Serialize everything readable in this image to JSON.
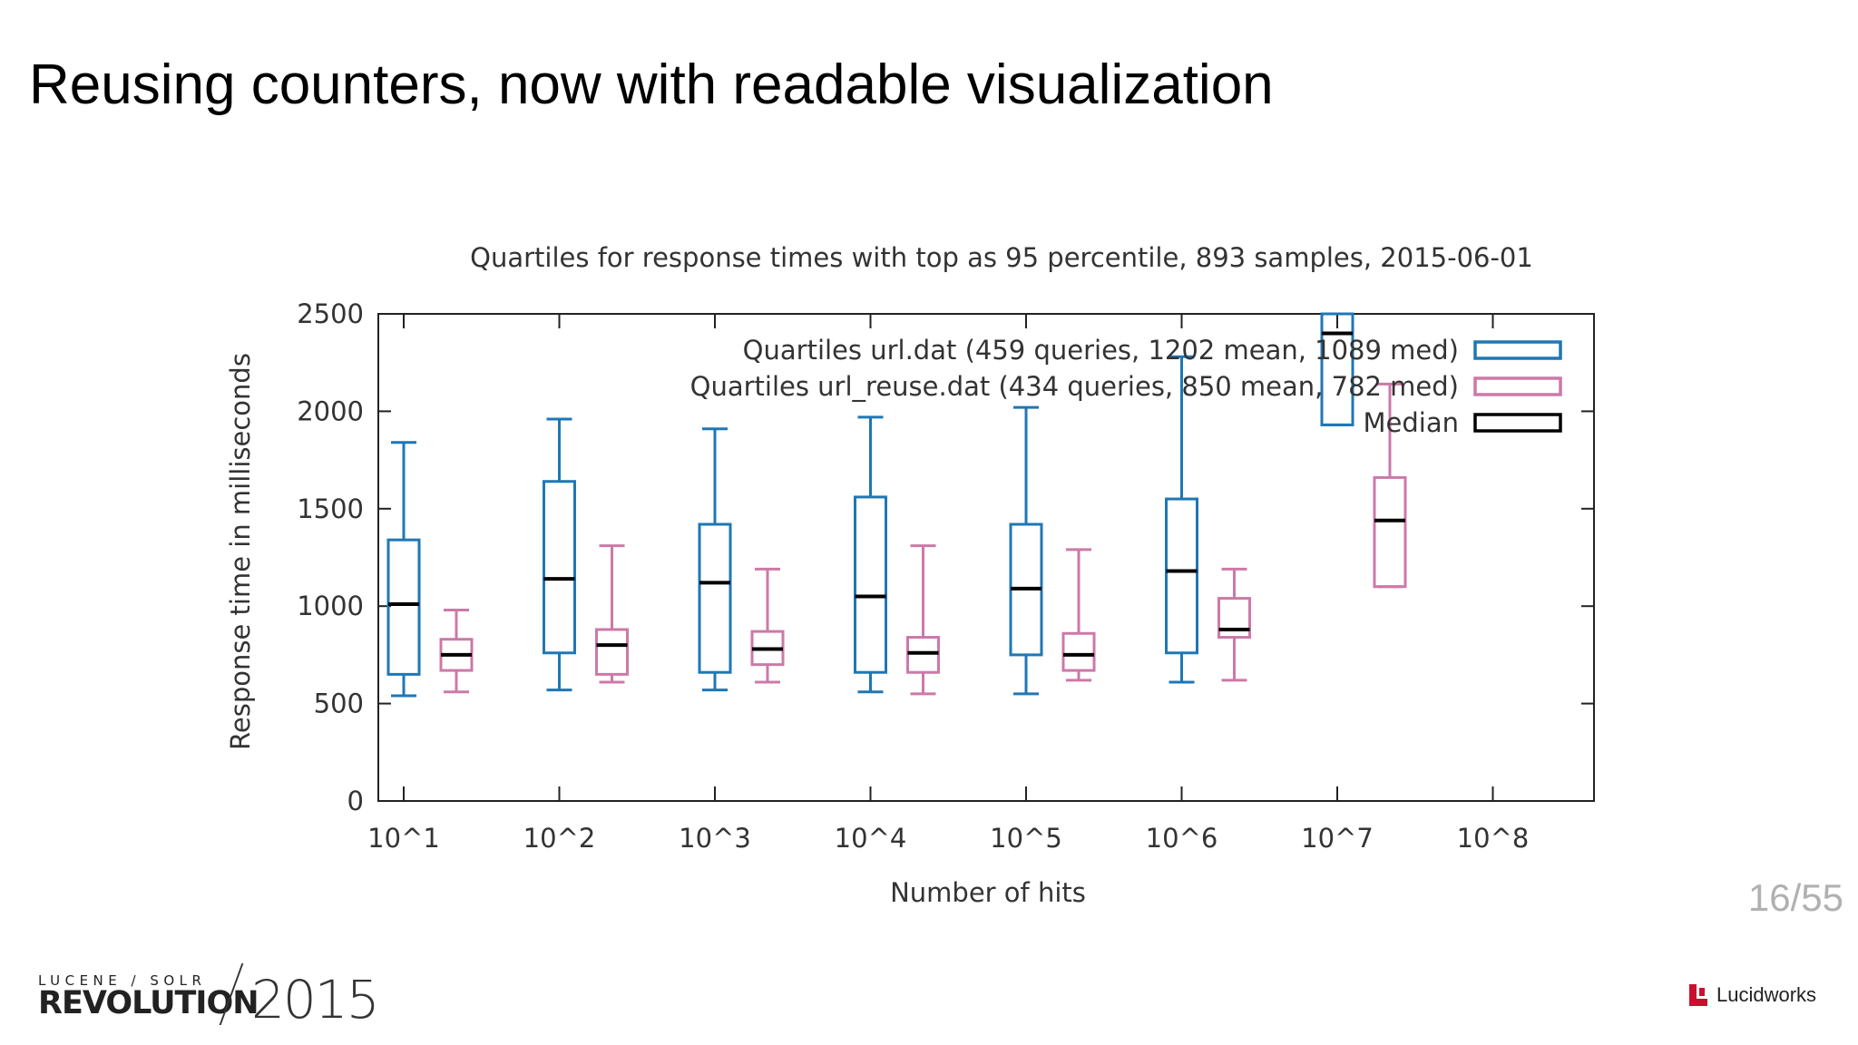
{
  "slide": {
    "title": "Reusing counters, now with readable visualization",
    "page_number": "16/55"
  },
  "footer": {
    "conference_small": "LUCENE / SOLR",
    "conference_big": "REVOLUTION",
    "conference_year": "2015",
    "vendor_name": "Lucidworks"
  },
  "colors": {
    "url": "#1f77b4",
    "url_reuse": "#cc79a7",
    "median": "#000000"
  },
  "chart_data": {
    "type": "box",
    "title": "Quartiles for response times with top as 95 percentile, 893 samples, 2015-06-01",
    "xlabel": "Number of hits",
    "ylabel": "Response time in milliseconds",
    "categories": [
      "10^1",
      "10^2",
      "10^3",
      "10^4",
      "10^5",
      "10^6",
      "10^7",
      "10^8"
    ],
    "ylim": [
      0,
      2500
    ],
    "yticks": [
      0,
      500,
      1000,
      1500,
      2000,
      2500
    ],
    "legend_position": "top-right",
    "series": [
      {
        "name": "Quartiles url.dat (459 queries, 1202 mean, 1089 med)",
        "color": "#1f77b4",
        "boxes": [
          {
            "category": "10^1",
            "min": 540,
            "q1": 650,
            "median": 1010,
            "q3": 1340,
            "max": 1840
          },
          {
            "category": "10^2",
            "min": 570,
            "q1": 760,
            "median": 1140,
            "q3": 1640,
            "max": 1960
          },
          {
            "category": "10^3",
            "min": 570,
            "q1": 660,
            "median": 1120,
            "q3": 1420,
            "max": 1910
          },
          {
            "category": "10^4",
            "min": 560,
            "q1": 660,
            "median": 1050,
            "q3": 1560,
            "max": 1970
          },
          {
            "category": "10^5",
            "min": 550,
            "q1": 750,
            "median": 1090,
            "q3": 1420,
            "max": 2020
          },
          {
            "category": "10^6",
            "min": 610,
            "q1": 760,
            "median": 1180,
            "q3": 1550,
            "max": 2280
          },
          {
            "category": "10^7",
            "min": 1930,
            "q1": 1930,
            "median": 2400,
            "q3": 2500,
            "max": 2500
          }
        ]
      },
      {
        "name": "Quartiles url_reuse.dat (434 queries, 850 mean, 782 med)",
        "color": "#cc79a7",
        "boxes": [
          {
            "category": "10^1",
            "min": 560,
            "q1": 670,
            "median": 750,
            "q3": 830,
            "max": 980
          },
          {
            "category": "10^2",
            "min": 610,
            "q1": 650,
            "median": 800,
            "q3": 880,
            "max": 1310
          },
          {
            "category": "10^3",
            "min": 610,
            "q1": 700,
            "median": 780,
            "q3": 870,
            "max": 1190
          },
          {
            "category": "10^4",
            "min": 550,
            "q1": 660,
            "median": 760,
            "q3": 840,
            "max": 1310
          },
          {
            "category": "10^5",
            "min": 620,
            "q1": 670,
            "median": 750,
            "q3": 860,
            "max": 1290
          },
          {
            "category": "10^6",
            "min": 620,
            "q1": 840,
            "median": 880,
            "q3": 1040,
            "max": 1190
          },
          {
            "category": "10^7",
            "min": 1100,
            "q1": 1100,
            "median": 1440,
            "q3": 1660,
            "max": 2140
          }
        ]
      }
    ],
    "legend": [
      {
        "label": "Quartiles url.dat (459 queries, 1202 mean, 1089 med)",
        "color": "#1f77b4"
      },
      {
        "label": "Quartiles url_reuse.dat (434 queries, 850 mean, 782 med)",
        "color": "#cc79a7"
      },
      {
        "label": "Median",
        "color": "#000000"
      }
    ]
  }
}
